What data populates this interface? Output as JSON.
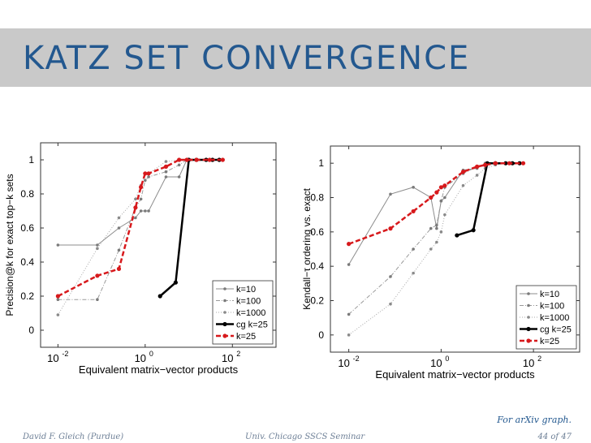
{
  "slide": {
    "title": "KATZ SET CONVERGENCE",
    "footer_left": "David F. Gleich (Purdue)",
    "footer_center": "Univ. Chicago SSCS Seminar",
    "footer_right": "44 of 47",
    "note": "For arXiv graph."
  },
  "colors": {
    "title": "#23588f",
    "title_bar": "#c9c9c9",
    "red": "#d7191c",
    "black": "#000000",
    "gray": "#8c8c8c"
  },
  "chart_data": [
    {
      "type": "line",
      "xscale": "log",
      "xlim": [
        0.004,
        1000
      ],
      "ylim": [
        -0.1,
        1.1
      ],
      "xticks": [
        0.01,
        1,
        100
      ],
      "xtick_labels": [
        "10",
        "10",
        "10"
      ],
      "xtick_exponents": [
        "-2",
        "0",
        "2"
      ],
      "yticks": [
        0,
        0.2,
        0.4,
        0.6,
        0.8,
        1
      ],
      "ytick_labels": [
        "0",
        "0.2",
        "0.4",
        "0.6",
        "0.8",
        "1"
      ],
      "xlabel": "Equivalent matrix−vector products",
      "ylabel": "Precision@k for exact top−k sets",
      "legend": "bottom-right",
      "grid": false,
      "series": [
        {
          "name": "k=10",
          "style": "solid-gray",
          "x": [
            0.01,
            0.08,
            0.25,
            0.6,
            0.8,
            1,
            1.2,
            3,
            6,
            9,
            15,
            30,
            60
          ],
          "y": [
            0.5,
            0.5,
            0.6,
            0.66,
            0.7,
            0.7,
            0.7,
            0.9,
            0.9,
            1,
            1,
            1,
            1
          ]
        },
        {
          "name": "k=100",
          "style": "dashdot-gray",
          "x": [
            0.01,
            0.08,
            0.25,
            0.6,
            0.8,
            1,
            1.2,
            3,
            6,
            9,
            15,
            30,
            60
          ],
          "y": [
            0.18,
            0.18,
            0.47,
            0.72,
            0.77,
            0.88,
            0.9,
            0.93,
            0.97,
            1,
            1,
            1,
            1
          ]
        },
        {
          "name": "k=1000",
          "style": "dotted-gray",
          "x": [
            0.01,
            0.08,
            0.25,
            0.6,
            0.8,
            1,
            1.2,
            3,
            6,
            9,
            15,
            30,
            60
          ],
          "y": [
            0.09,
            0.48,
            0.66,
            0.77,
            0.85,
            0.92,
            0.92,
            0.99,
            1,
            1,
            1,
            1,
            1
          ]
        },
        {
          "name": "cg k=25",
          "style": "solid-black",
          "x": [
            2.2,
            5,
            10,
            15,
            25,
            35,
            50
          ],
          "y": [
            0.2,
            0.28,
            1,
            1,
            1,
            1,
            1
          ]
        },
        {
          "name": "k=25",
          "style": "dashed-red",
          "x": [
            0.01,
            0.08,
            0.25,
            0.6,
            0.8,
            1,
            1.2,
            3,
            6,
            9,
            15,
            30,
            60
          ],
          "y": [
            0.2,
            0.32,
            0.36,
            0.72,
            0.84,
            0.92,
            0.92,
            0.96,
            1,
            1,
            1,
            1,
            1
          ]
        }
      ]
    },
    {
      "type": "line",
      "xscale": "log",
      "xlim": [
        0.004,
        1000
      ],
      "ylim": [
        -0.1,
        1.1
      ],
      "xticks": [
        0.01,
        1,
        100
      ],
      "xtick_labels": [
        "10",
        "10",
        "10"
      ],
      "xtick_exponents": [
        "-2",
        "0",
        "2"
      ],
      "yticks": [
        0,
        0.2,
        0.4,
        0.6,
        0.8,
        1
      ],
      "ytick_labels": [
        "0",
        "0.2",
        "0.4",
        "0.6",
        "0.8",
        "1"
      ],
      "xlabel": "Equivalent matrix−vector products",
      "ylabel": "Kendall−τ ordering vs. exact",
      "legend": "bottom-right",
      "grid": false,
      "series": [
        {
          "name": "k=10",
          "style": "solid-gray",
          "x": [
            0.01,
            0.08,
            0.25,
            0.6,
            0.8,
            1,
            1.2,
            3,
            6,
            9,
            15,
            30,
            60
          ],
          "y": [
            0.41,
            0.82,
            0.86,
            0.8,
            0.62,
            0.78,
            0.8,
            0.96,
            0.97,
            1,
            1,
            1,
            1
          ]
        },
        {
          "name": "k=100",
          "style": "dashdot-gray",
          "x": [
            0.01,
            0.08,
            0.25,
            0.6,
            0.8,
            1,
            1.2,
            3,
            6,
            9,
            15,
            30,
            60
          ],
          "y": [
            0.12,
            0.34,
            0.5,
            0.62,
            0.64,
            0.78,
            0.86,
            0.94,
            0.98,
            0.99,
            1,
            1,
            1
          ]
        },
        {
          "name": "k=1000",
          "style": "dotted-gray",
          "x": [
            0.01,
            0.08,
            0.25,
            0.6,
            0.8,
            1,
            1.2,
            3,
            6,
            9,
            15,
            30,
            60
          ],
          "y": [
            0,
            0.18,
            0.36,
            0.5,
            0.54,
            0.6,
            0.7,
            0.87,
            0.93,
            0.97,
            0.99,
            1,
            1
          ]
        },
        {
          "name": "cg k=25",
          "style": "solid-black",
          "x": [
            2.2,
            5,
            10,
            15,
            25,
            35,
            50
          ],
          "y": [
            0.58,
            0.61,
            1,
            1,
            1,
            1,
            1
          ]
        },
        {
          "name": "k=25",
          "style": "dashed-red",
          "x": [
            0.01,
            0.08,
            0.25,
            0.6,
            0.8,
            1,
            1.2,
            3,
            6,
            9,
            15,
            30,
            60
          ],
          "y": [
            0.53,
            0.62,
            0.72,
            0.8,
            0.83,
            0.86,
            0.87,
            0.95,
            0.98,
            0.99,
            1,
            1,
            1
          ]
        }
      ]
    }
  ]
}
